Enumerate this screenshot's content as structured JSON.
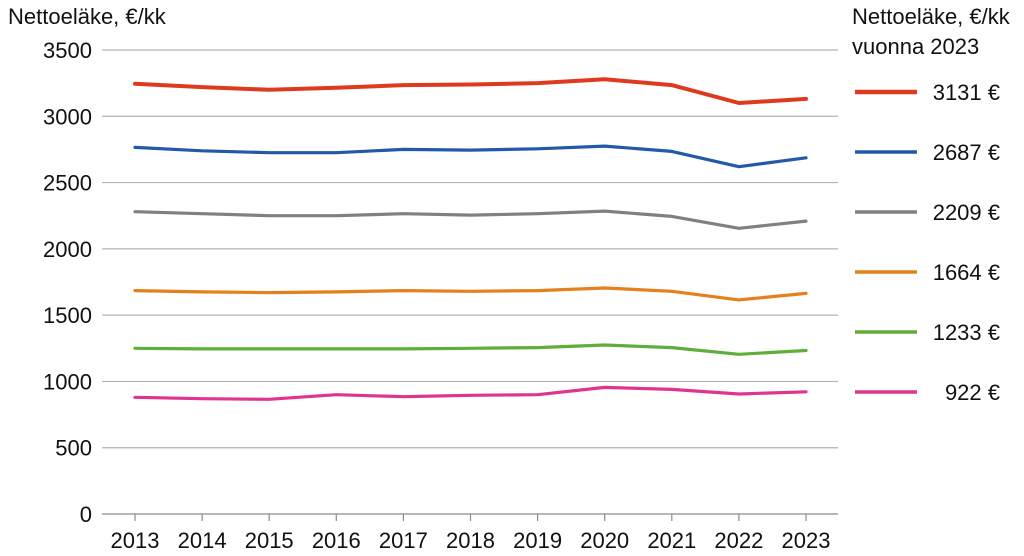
{
  "chart_data": {
    "type": "line",
    "ylabel": "Nettoeläke, €/kk",
    "legend_title_line1": "Nettoeläke, €/kk",
    "legend_title_line2": "vuonna 2023",
    "legend_placement": "right",
    "grid": true,
    "ylim": [
      0,
      3500
    ],
    "yticks": [
      "0",
      "500",
      "1000",
      "1500",
      "2000",
      "2500",
      "3000",
      "3500"
    ],
    "ytick_values": [
      0,
      500,
      1000,
      1500,
      2000,
      2500,
      3000,
      3500
    ],
    "x": [
      "2013",
      "2014",
      "2015",
      "2016",
      "2017",
      "2018",
      "2019",
      "2020",
      "2021",
      "2022",
      "2023"
    ],
    "series": [
      {
        "legend_label": "3131 €",
        "color": "#e03a1e",
        "values": [
          3245,
          3220,
          3200,
          3215,
          3235,
          3240,
          3250,
          3280,
          3235,
          3100,
          3131
        ]
      },
      {
        "legend_label": "2687 €",
        "color": "#2359a8",
        "values": [
          2765,
          2740,
          2725,
          2725,
          2750,
          2745,
          2755,
          2775,
          2735,
          2620,
          2687
        ]
      },
      {
        "legend_label": "2209 €",
        "color": "#808080",
        "values": [
          2280,
          2265,
          2250,
          2250,
          2265,
          2255,
          2265,
          2285,
          2245,
          2155,
          2209
        ]
      },
      {
        "legend_label": "1664 €",
        "color": "#e5801c",
        "values": [
          1685,
          1675,
          1670,
          1675,
          1685,
          1680,
          1685,
          1705,
          1680,
          1615,
          1664
        ]
      },
      {
        "legend_label": "1233 €",
        "color": "#5fae3a",
        "values": [
          1250,
          1245,
          1245,
          1245,
          1245,
          1250,
          1255,
          1275,
          1255,
          1205,
          1233
        ]
      },
      {
        "legend_label": "922 €",
        "color": "#e0348f",
        "values": [
          880,
          870,
          865,
          900,
          885,
          895,
          900,
          955,
          940,
          905,
          922
        ]
      }
    ]
  }
}
